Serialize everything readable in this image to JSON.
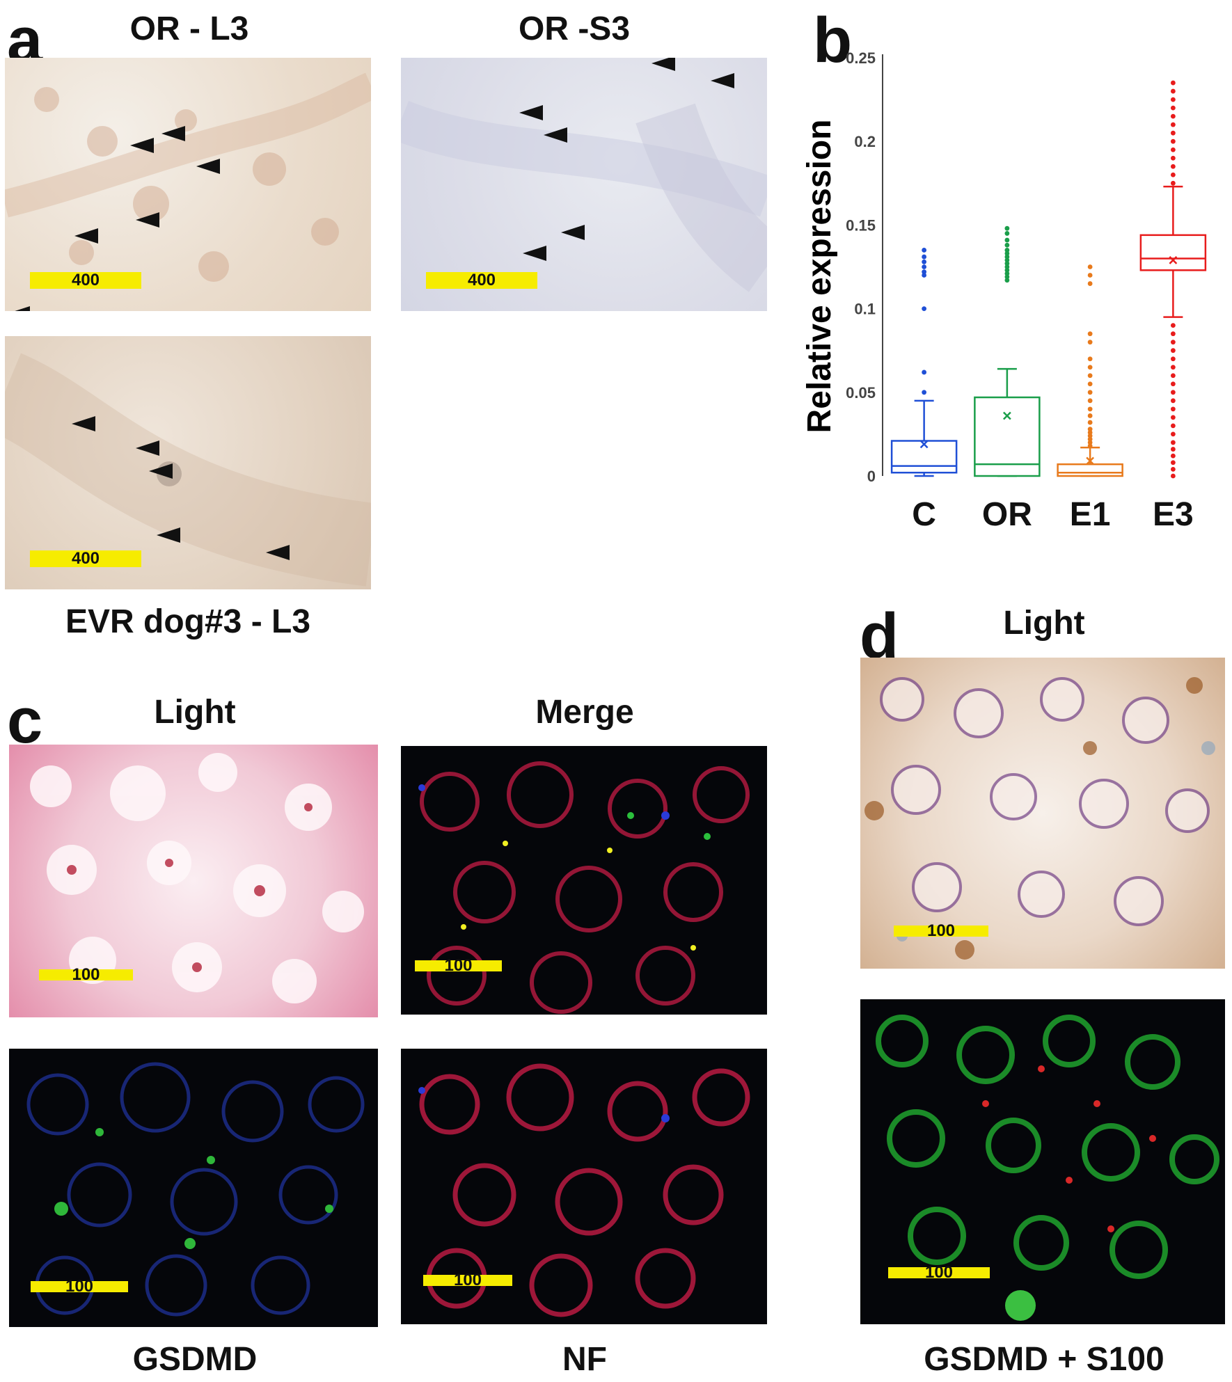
{
  "panel_a": {
    "label": "a",
    "title_left": "OR - L3",
    "title_right": "OR -S3",
    "caption_bottom": "EVR dog#3 - L3",
    "scale_bar": "400"
  },
  "panel_b": {
    "label": "b"
  },
  "panel_c": {
    "label": "c",
    "title_light": "Light",
    "title_merge": "Merge",
    "caption_gsdmd": "GSDMD",
    "caption_nf": "NF",
    "scale_bar": "100"
  },
  "panel_d": {
    "label": "d",
    "title_light": "Light",
    "caption": "GSDMD + S100",
    "scale_bar": "100"
  },
  "chart_data": {
    "type": "box",
    "title": "",
    "xlabel": "",
    "ylabel": "Relative expression",
    "ylim": [
      0,
      0.25
    ],
    "yticks": [
      0,
      0.05,
      0.1,
      0.15,
      0.2,
      0.25
    ],
    "ytick_labels": [
      "0",
      "0.05",
      "0.1",
      "0.15",
      "0.2",
      "0.25"
    ],
    "categories": [
      "C",
      "OR",
      "E1",
      "E3"
    ],
    "grid": false,
    "legend": "none",
    "series": [
      {
        "category": "C",
        "color": "#1f4fd6",
        "whisker_low": 0.0,
        "q1": 0.002,
        "median": 0.006,
        "q3": 0.021,
        "whisker_high": 0.045,
        "mean": 0.019,
        "outliers": [
          0.05,
          0.062,
          0.1,
          0.12,
          0.122,
          0.125,
          0.128,
          0.131,
          0.135
        ]
      },
      {
        "category": "OR",
        "color": "#1a9e4a",
        "whisker_low": 0.0,
        "q1": 0.0,
        "median": 0.007,
        "q3": 0.047,
        "whisker_high": 0.064,
        "mean": 0.036,
        "outliers": [
          0.117,
          0.119,
          0.121,
          0.123,
          0.125,
          0.127,
          0.129,
          0.131,
          0.133,
          0.135,
          0.138,
          0.141,
          0.145,
          0.148
        ]
      },
      {
        "category": "E1",
        "color": "#e87a1c",
        "whisker_low": 0.0,
        "q1": 0.0,
        "median": 0.002,
        "q3": 0.007,
        "whisker_high": 0.017,
        "mean": 0.009,
        "outliers": [
          0.018,
          0.02,
          0.022,
          0.024,
          0.026,
          0.028,
          0.032,
          0.036,
          0.04,
          0.045,
          0.05,
          0.055,
          0.06,
          0.065,
          0.07,
          0.08,
          0.085,
          0.115,
          0.12,
          0.125
        ]
      },
      {
        "category": "E3",
        "color": "#e81c1c",
        "whisker_low": 0.095,
        "q1": 0.123,
        "median": 0.13,
        "q3": 0.144,
        "whisker_high": 0.173,
        "mean": 0.129,
        "outliers": [
          0.0,
          0.004,
          0.008,
          0.012,
          0.016,
          0.02,
          0.025,
          0.03,
          0.035,
          0.04,
          0.045,
          0.05,
          0.055,
          0.06,
          0.065,
          0.07,
          0.075,
          0.08,
          0.085,
          0.09,
          0.175,
          0.18,
          0.185,
          0.19,
          0.195,
          0.2,
          0.205,
          0.21,
          0.215,
          0.22,
          0.225,
          0.23,
          0.235
        ]
      }
    ]
  }
}
